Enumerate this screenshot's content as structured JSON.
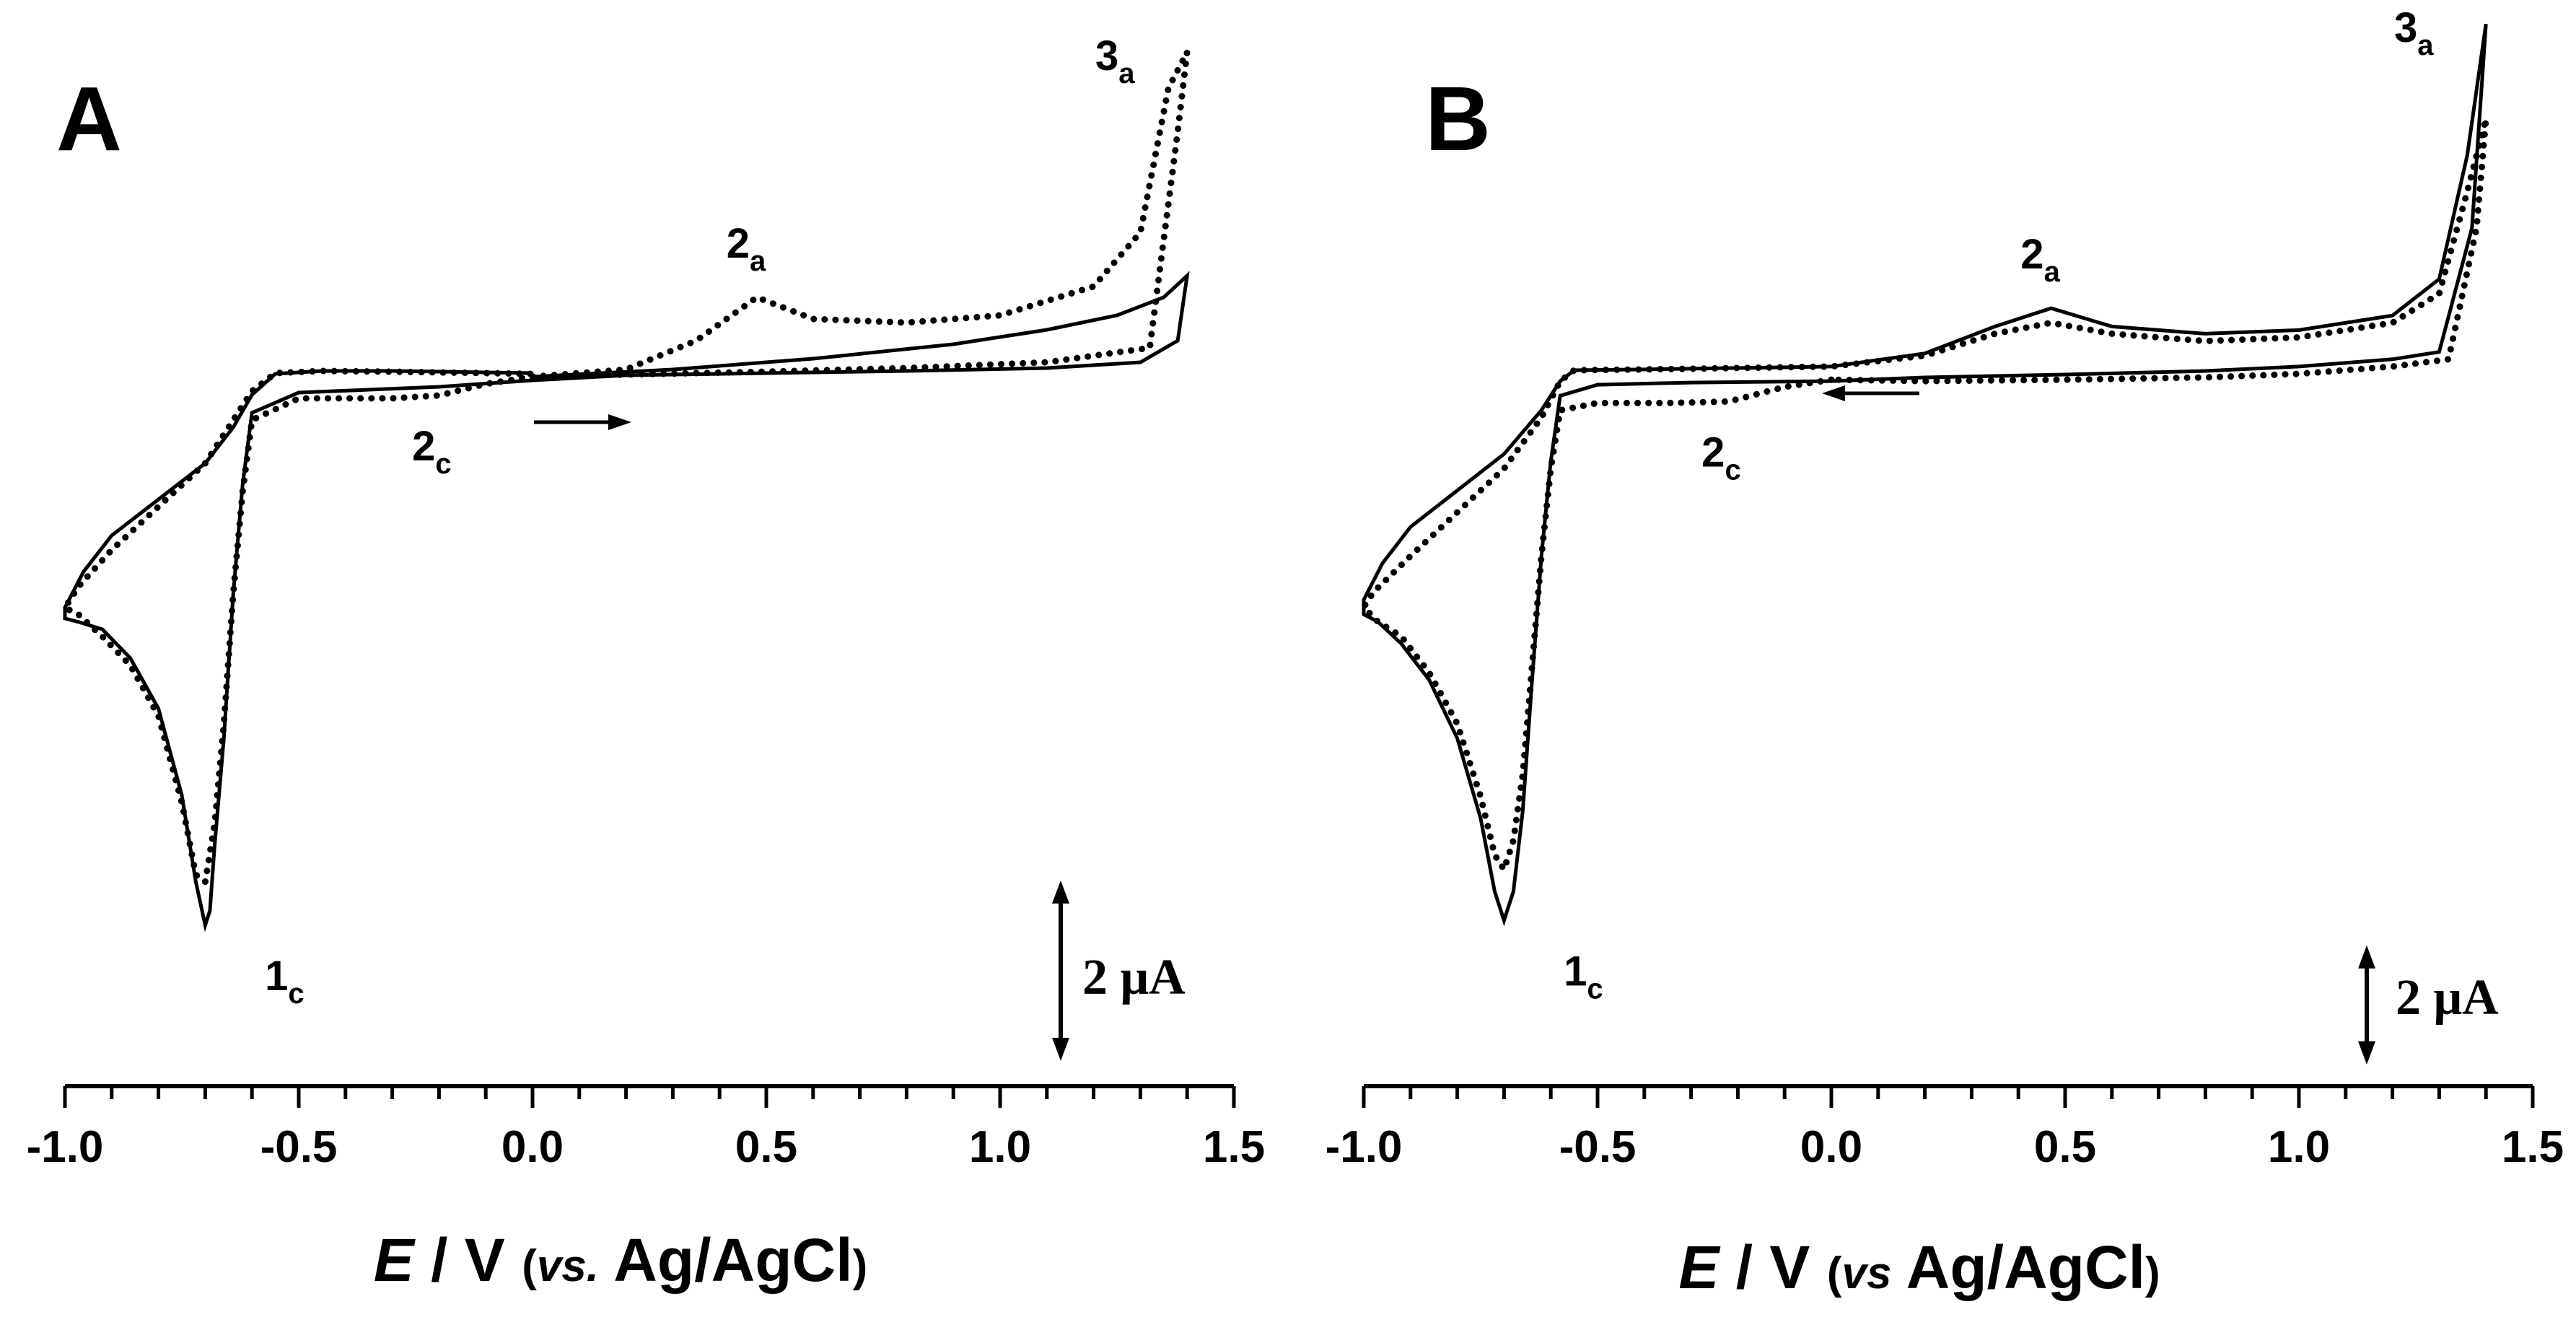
{
  "chart_data": [
    {
      "panel": "A",
      "type": "line",
      "xlabel": {
        "italic": "E",
        "normal": " / V ",
        "open": "(",
        "vs": "vs.",
        "ref": " Ag/AgCl",
        "close": ")"
      },
      "xlim": [
        -1.0,
        1.5
      ],
      "ticks": [
        "-1.0",
        "-0.5",
        "0.0",
        "0.5",
        "1.0",
        "1.5"
      ],
      "tick_values": [
        -1.0,
        -0.5,
        0.0,
        0.5,
        1.0,
        1.5
      ],
      "scale_bar": {
        "value": 2,
        "label": "2 μA"
      },
      "scan_direction": "positive",
      "peaks": [
        {
          "main": "1",
          "sub": "c",
          "x": -0.7
        },
        {
          "main": "2",
          "sub": "a",
          "x": 0.48
        },
        {
          "main": "2",
          "sub": "c",
          "x": -0.2
        },
        {
          "main": "3",
          "sub": "a",
          "x": 1.4
        }
      ],
      "series": [
        {
          "style": "solid",
          "x": [
            0.0,
            0.3,
            0.6,
            0.9,
            1.1,
            1.25,
            1.35,
            1.4,
            1.38,
            1.3,
            1.1,
            0.8,
            0.5,
            0.2,
            0.0,
            -0.2,
            -0.5,
            -0.6,
            -0.62,
            -0.64,
            -0.66,
            -0.68,
            -0.69,
            -0.7,
            -0.72,
            -0.75,
            -0.8,
            -0.86,
            -0.92,
            -0.97,
            -1.0,
            -1.0,
            -0.96,
            -0.9,
            -0.8,
            -0.7,
            -0.64,
            -0.6,
            -0.55,
            -0.45,
            -0.3,
            -0.1,
            0.0
          ],
          "y": [
            0.0,
            0.1,
            0.25,
            0.45,
            0.65,
            0.85,
            1.1,
            1.4,
            0.5,
            0.2,
            0.12,
            0.08,
            0.05,
            0.02,
            -0.05,
            -0.14,
            -0.22,
            -0.5,
            -1.5,
            -3.0,
            -5.0,
            -6.5,
            -7.4,
            -7.6,
            -7.0,
            -5.8,
            -4.6,
            -3.9,
            -3.5,
            -3.4,
            -3.35,
            -3.2,
            -2.7,
            -2.2,
            -1.7,
            -1.2,
            -0.7,
            -0.25,
            0.04,
            0.08,
            0.08,
            0.06,
            0.05
          ]
        },
        {
          "style": "dotted",
          "x": [
            0.0,
            0.2,
            0.35,
            0.48,
            0.6,
            0.8,
            1.0,
            1.2,
            1.3,
            1.36,
            1.4,
            1.38,
            1.32,
            1.1,
            0.8,
            0.5,
            0.2,
            0.0,
            -0.1,
            -0.2,
            -0.3,
            -0.5,
            -0.6,
            -0.62,
            -0.64,
            -0.66,
            -0.68,
            -0.7,
            -0.72,
            -0.75,
            -0.8,
            -0.86,
            -0.92,
            -0.97,
            -1.0,
            -0.97,
            -0.9,
            -0.8,
            -0.7,
            -0.6,
            -0.55,
            -0.45,
            -0.3,
            -0.1,
            0.0
          ],
          "y": [
            0.0,
            0.1,
            0.5,
            1.1,
            0.8,
            0.75,
            0.85,
            1.25,
            2.0,
            4.0,
            4.5,
            3.4,
            0.4,
            0.2,
            0.12,
            0.07,
            0.03,
            0.0,
            -0.1,
            -0.26,
            -0.3,
            -0.3,
            -0.6,
            -1.6,
            -3.0,
            -4.8,
            -6.2,
            -7.0,
            -6.9,
            -5.9,
            -4.7,
            -4.0,
            -3.6,
            -3.3,
            -3.2,
            -2.9,
            -2.4,
            -1.8,
            -1.2,
            -0.2,
            0.05,
            0.08,
            0.07,
            0.05,
            0.04
          ]
        }
      ]
    },
    {
      "panel": "B",
      "type": "line",
      "xlabel": {
        "italic": "E",
        "normal": " / V ",
        "open": "(",
        "vs": "vs",
        "ref": " Ag/AgCl",
        "close": ")"
      },
      "xlim": [
        -1.0,
        1.5
      ],
      "ticks": [
        "-1.0",
        "-0.5",
        "0.0",
        "0.5",
        "1.0",
        "1.5"
      ],
      "tick_values": [
        -1.0,
        -0.5,
        0.0,
        0.5,
        1.0,
        1.5
      ],
      "scale_bar": {
        "value": 2,
        "label": "2 μA"
      },
      "scan_direction": "negative",
      "peaks": [
        {
          "main": "1",
          "sub": "c",
          "x": -0.7
        },
        {
          "main": "2",
          "sub": "a",
          "x": 0.47
        },
        {
          "main": "2",
          "sub": "c",
          "x": -0.22
        },
        {
          "main": "3",
          "sub": "a",
          "x": 1.4
        }
      ],
      "series": [
        {
          "style": "solid",
          "x": [
            0.0,
            -0.3,
            -0.5,
            -0.58,
            -0.6,
            -0.62,
            -0.64,
            -0.66,
            -0.68,
            -0.7,
            -0.72,
            -0.75,
            -0.8,
            -0.86,
            -0.92,
            -0.97,
            -1.0,
            -1.0,
            -0.96,
            -0.9,
            -0.8,
            -0.7,
            -0.62,
            -0.58,
            -0.55,
            -0.4,
            -0.2,
            0.0,
            0.2,
            0.35,
            0.47,
            0.6,
            0.8,
            1.0,
            1.2,
            1.3,
            1.36,
            1.4,
            1.37,
            1.3,
            1.2,
            1.0,
            0.8,
            0.5,
            0.2,
            0.0
          ],
          "y": [
            -0.1,
            -0.12,
            -0.15,
            -0.3,
            -1.2,
            -2.5,
            -4.2,
            -6.0,
            -7.1,
            -7.5,
            -7.1,
            -6.1,
            -5.0,
            -4.2,
            -3.7,
            -3.4,
            -3.3,
            -3.1,
            -2.6,
            -2.1,
            -1.6,
            -1.1,
            -0.5,
            -0.1,
            0.05,
            0.06,
            0.08,
            0.1,
            0.28,
            0.65,
            0.9,
            0.65,
            0.55,
            0.6,
            0.8,
            1.3,
            3.0,
            4.8,
            2.0,
            0.3,
            0.2,
            0.1,
            0.04,
            -0.01,
            -0.05,
            -0.1
          ]
        },
        {
          "style": "dotted",
          "x": [
            0.0,
            -0.1,
            -0.22,
            -0.35,
            -0.5,
            -0.58,
            -0.6,
            -0.62,
            -0.64,
            -0.66,
            -0.68,
            -0.7,
            -0.72,
            -0.75,
            -0.8,
            -0.86,
            -0.92,
            -0.97,
            -1.0,
            -0.98,
            -0.9,
            -0.8,
            -0.7,
            -0.62,
            -0.58,
            -0.55,
            -0.4,
            -0.2,
            0.0,
            0.2,
            0.35,
            0.47,
            0.6,
            0.8,
            1.0,
            1.2,
            1.3,
            1.36,
            1.4,
            1.38,
            1.32,
            1.2,
            1.0,
            0.8,
            0.5,
            0.2,
            0.0
          ],
          "y": [
            -0.08,
            -0.18,
            -0.38,
            -0.4,
            -0.4,
            -0.5,
            -1.3,
            -2.5,
            -4.0,
            -5.5,
            -6.4,
            -6.8,
            -6.6,
            -5.8,
            -4.8,
            -4.1,
            -3.6,
            -3.4,
            -3.2,
            -3.0,
            -2.5,
            -1.9,
            -1.3,
            -0.6,
            -0.1,
            0.05,
            0.06,
            0.08,
            0.1,
            0.25,
            0.55,
            0.7,
            0.55,
            0.45,
            0.5,
            0.7,
            1.1,
            2.5,
            3.5,
            2.0,
            0.2,
            0.1,
            0.0,
            -0.05,
            -0.08,
            -0.1,
            -0.08
          ]
        }
      ]
    }
  ]
}
